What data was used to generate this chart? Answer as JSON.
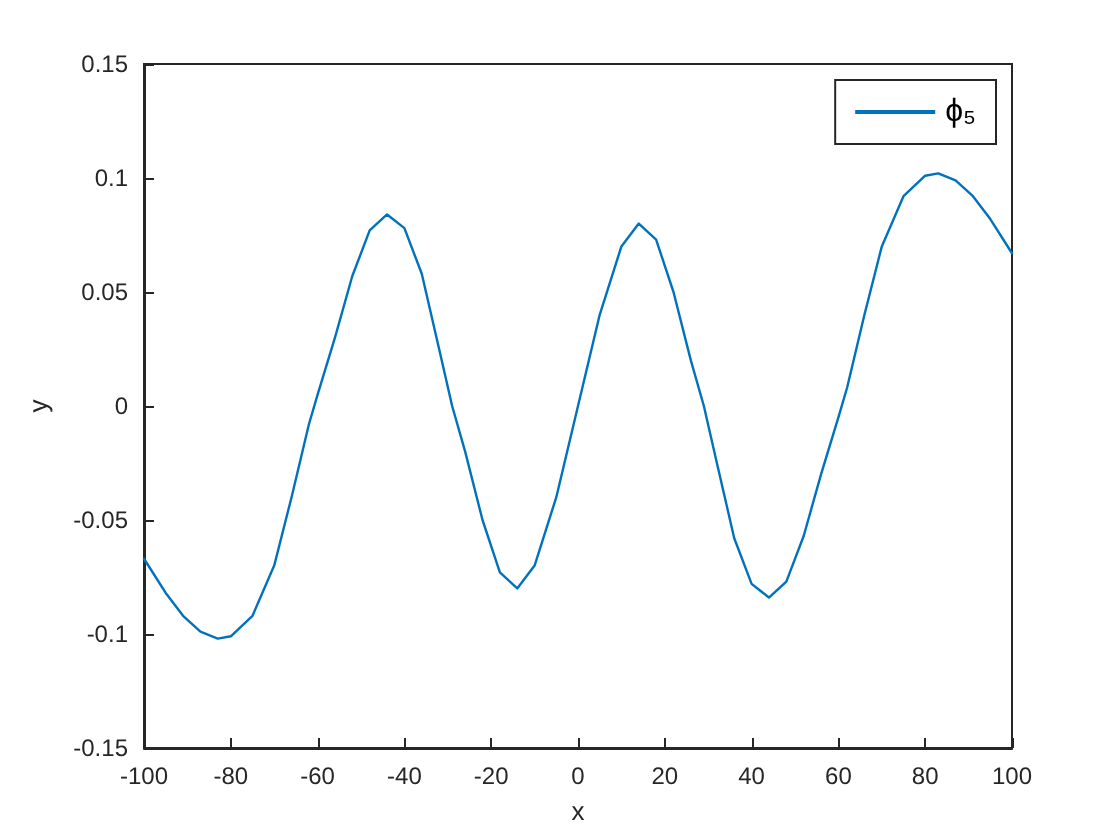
{
  "chart_data": {
    "type": "line",
    "xlabel": "x",
    "ylabel": "y",
    "xlim": [
      -100,
      100
    ],
    "xticks": [
      -100,
      -80,
      -60,
      -40,
      -20,
      0,
      20,
      40,
      60,
      80,
      100
    ],
    "ylim": [
      -0.15,
      0.15
    ],
    "yticks": [
      -0.15,
      -0.1,
      -0.05,
      0,
      0.05,
      0.1,
      0.15
    ],
    "grid": false,
    "legend": "top right",
    "marker": "none",
    "line_style": "solid",
    "series": [
      {
        "name": "ϕ₅",
        "color": "#0072bd",
        "x": [
          -100,
          -95,
          -91,
          -87,
          -83,
          -80,
          -75,
          -70,
          -66,
          -62,
          -60,
          -56,
          -52,
          -48,
          -44,
          -40,
          -36,
          -32,
          -29,
          -26,
          -22,
          -18,
          -14,
          -10,
          -5,
          0,
          5,
          10,
          14,
          18,
          22,
          26,
          29,
          32,
          36,
          40,
          44,
          48,
          52,
          56,
          60,
          62,
          66,
          70,
          75,
          80,
          83,
          87,
          91,
          95,
          100
        ],
        "values": [
          -0.067,
          -0.082,
          -0.092,
          -0.099,
          -0.102,
          -0.101,
          -0.092,
          -0.07,
          -0.04,
          -0.008,
          0.005,
          0.03,
          0.057,
          0.077,
          0.084,
          0.078,
          0.058,
          0.025,
          0,
          -0.02,
          -0.05,
          -0.073,
          -0.08,
          -0.07,
          -0.04,
          0,
          0.04,
          0.07,
          0.08,
          0.073,
          0.05,
          0.02,
          0,
          -0.025,
          -0.058,
          -0.078,
          -0.084,
          -0.077,
          -0.057,
          -0.03,
          -0.005,
          0.008,
          0.04,
          0.07,
          0.092,
          0.101,
          0.102,
          0.099,
          0.092,
          0.082,
          0.067
        ]
      }
    ]
  }
}
